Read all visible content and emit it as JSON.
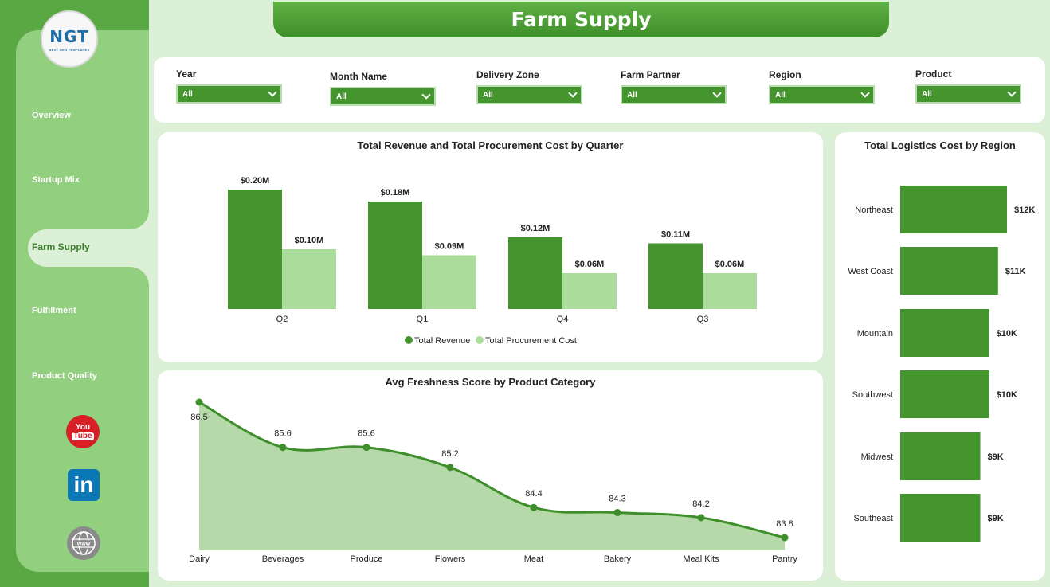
{
  "app": {
    "title": "Farm Supply",
    "logo_text": "NGT",
    "logo_subtext": "NEXT GEN TEMPLATES"
  },
  "sidebar": {
    "items": [
      {
        "label": "Overview"
      },
      {
        "label": "Startup Mix"
      },
      {
        "label": "Farm Supply",
        "active": true
      },
      {
        "label": "Fulfillment"
      },
      {
        "label": "Product Quality"
      }
    ],
    "social": {
      "youtube_top": "You",
      "youtube_bottom": "Tube",
      "linkedin": "in",
      "web": "www"
    }
  },
  "filters": [
    {
      "label": "Year",
      "value": "All"
    },
    {
      "label": "Month Name",
      "value": "All"
    },
    {
      "label": "Delivery Zone",
      "value": "All"
    },
    {
      "label": "Farm Partner",
      "value": "All"
    },
    {
      "label": "Region",
      "value": "All"
    },
    {
      "label": "Product",
      "value": "All"
    }
  ],
  "colors": {
    "primary": "#45952f",
    "secondary": "#acdc9c",
    "area_fill": "#b5d9a8",
    "bg": "#dcefd7"
  },
  "chart_data": [
    {
      "type": "bar",
      "title": "Total Revenue and Total Procurement Cost by Quarter",
      "categories": [
        "Q2",
        "Q1",
        "Q4",
        "Q3"
      ],
      "series": [
        {
          "name": "Total Revenue",
          "values": [
            0.2,
            0.18,
            0.12,
            0.11
          ],
          "labels": [
            "$0.20M",
            "$0.18M",
            "$0.12M",
            "$0.11M"
          ],
          "color": "#45952f"
        },
        {
          "name": "Total Procurement Cost",
          "values": [
            0.1,
            0.09,
            0.06,
            0.06
          ],
          "labels": [
            "$0.10M",
            "$0.09M",
            "$0.06M",
            "$0.06M"
          ],
          "color": "#acdc9c"
        }
      ],
      "legend": "bottom"
    },
    {
      "type": "area",
      "title": "Avg Freshness Score by Product Category",
      "categories": [
        "Dairy",
        "Beverages",
        "Produce",
        "Flowers",
        "Meat",
        "Bakery",
        "Meal Kits",
        "Pantry"
      ],
      "values": [
        86.5,
        85.6,
        85.6,
        85.2,
        84.4,
        84.3,
        84.2,
        83.8
      ],
      "labels": [
        "86.5",
        "85.6",
        "85.6",
        "85.2",
        "84.4",
        "84.3",
        "84.2",
        "83.8"
      ]
    },
    {
      "type": "bar",
      "orientation": "horizontal",
      "title": "Total Logistics Cost by Region",
      "categories": [
        "Northeast",
        "West Coast",
        "Mountain",
        "Southwest",
        "Midwest",
        "Southeast"
      ],
      "values": [
        12,
        11,
        10,
        10,
        9,
        9
      ],
      "labels": [
        "$12K",
        "$11K",
        "$10K",
        "$10K",
        "$9K",
        "$9K"
      ],
      "value_unit": "K"
    }
  ]
}
